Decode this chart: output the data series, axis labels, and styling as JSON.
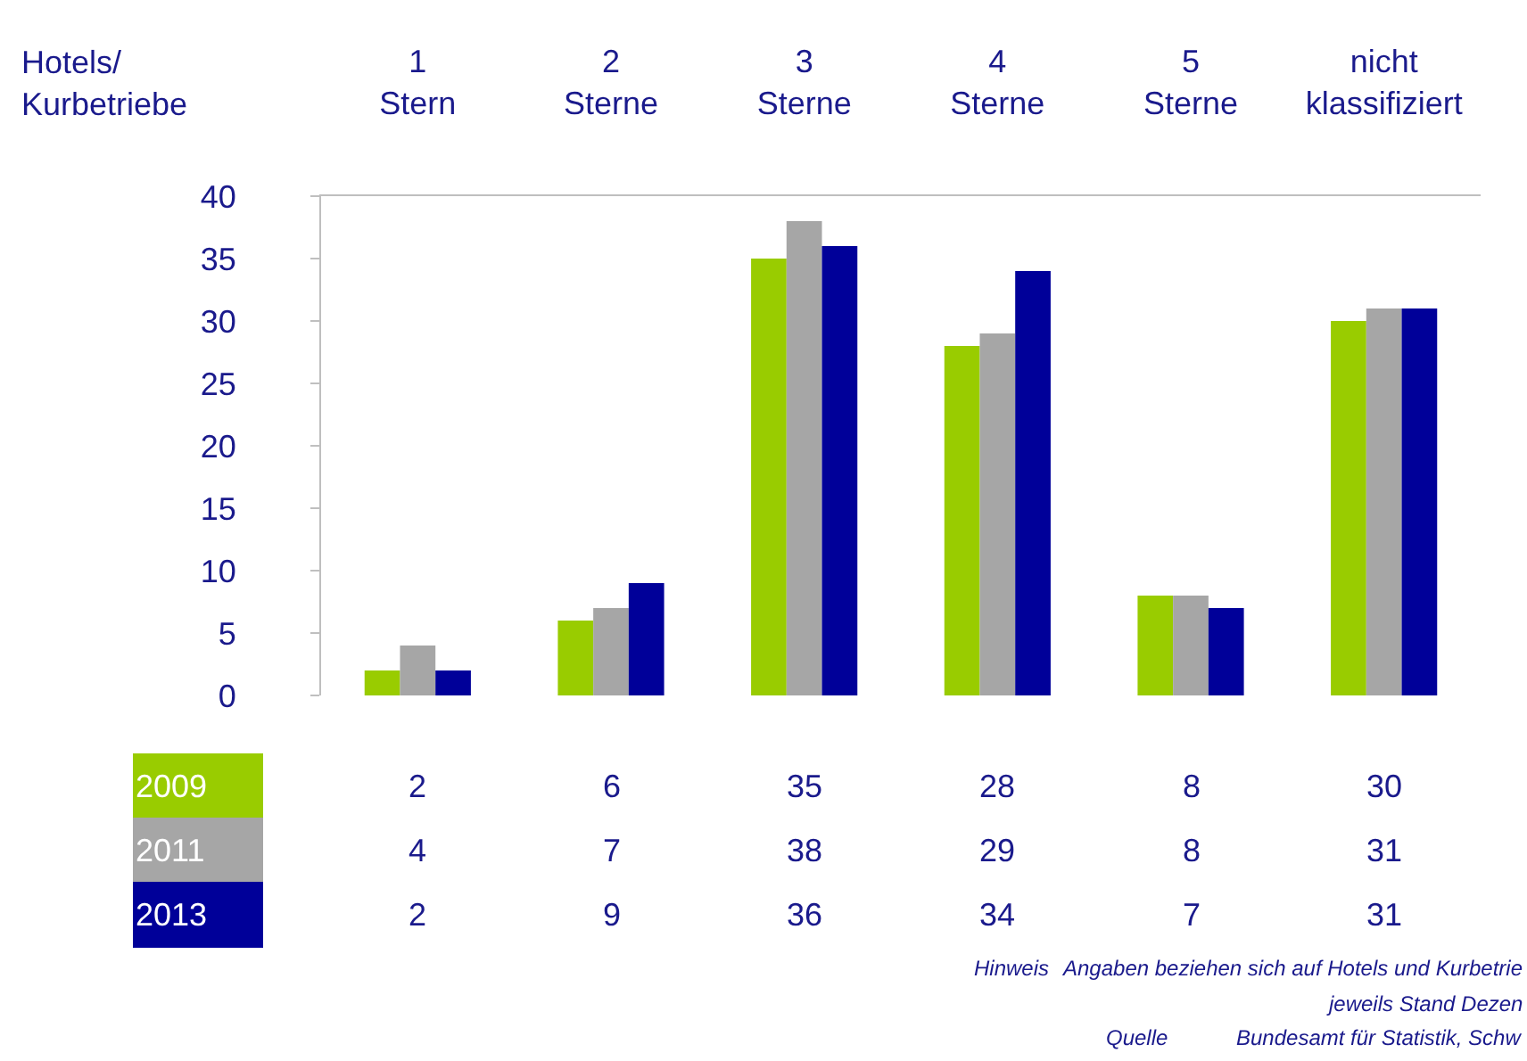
{
  "chart_data": {
    "type": "bar",
    "xlabel": "Hotels/ Kurbetriebe",
    "categories": [
      "1 Stern",
      "2 Sterne",
      "3 Sterne",
      "4 Sterne",
      "5 Sterne",
      "nicht klassifiziert"
    ],
    "series": [
      {
        "name": "2009",
        "color": "#99cc00",
        "values": [
          2,
          6,
          35,
          28,
          8,
          30
        ]
      },
      {
        "name": "2011",
        "color": "#a6a6a6",
        "values": [
          4,
          7,
          38,
          29,
          8,
          31
        ]
      },
      {
        "name": "2013",
        "color": "#000099",
        "values": [
          2,
          9,
          36,
          34,
          7,
          31
        ]
      }
    ],
    "ylim": [
      0,
      40
    ],
    "yticks": [
      0,
      5,
      10,
      15,
      20,
      25,
      30,
      35,
      40
    ],
    "data_labels": true,
    "annotations": [
      "Hinweis",
      "Angaben beziehen sich auf Hotels und Kurbetrie",
      "jeweils Stand Dezen",
      "Quelle",
      "Bundesamt für Statistik, Schw"
    ]
  }
}
